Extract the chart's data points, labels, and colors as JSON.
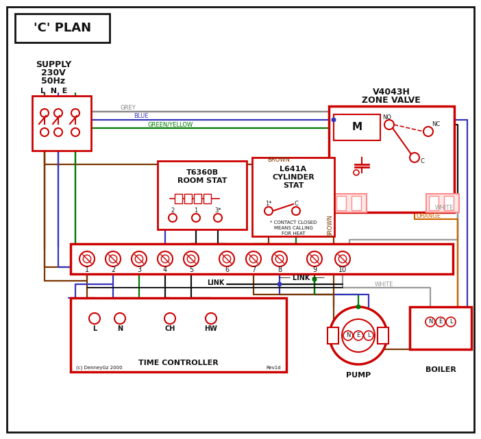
{
  "bg": "#ffffff",
  "red": "#cc0000",
  "blue": "#3333bb",
  "green": "#007700",
  "brown": "#7a3500",
  "grey": "#888888",
  "orange": "#cc6600",
  "black": "#111111",
  "white_wire": "#999999",
  "title": "'C' PLAN",
  "zone_valve_line1": "V4043H",
  "zone_valve_line2": "ZONE VALVE",
  "room_stat_line1": "T6360B",
  "room_stat_line2": "ROOM STAT",
  "cyl_stat_line1": "L641A",
  "cyl_stat_line2": "CYLINDER",
  "cyl_stat_line3": "STAT",
  "supply_line1": "SUPPLY",
  "supply_line2": "230V",
  "supply_line3": "50Hz",
  "supply_lne": "L  N  E",
  "time_ctrl": "TIME CONTROLLER",
  "pump_label": "PUMP",
  "boiler_label": "BOILER",
  "link_label": "LINK",
  "contact_line1": "* CONTACT CLOSED",
  "contact_line2": "MEANS CALLING",
  "contact_line3": "FOR HEAT",
  "copyright": "(c) DenneyGz 2000",
  "revision": "Rev1d",
  "grey_lbl": "GREY",
  "blue_lbl": "BLUE",
  "green_yellow_lbl": "GREEN/YELLOW",
  "brown_lbl": "BROWN",
  "white_lbl": "WHITE",
  "orange_lbl": "ORANGE"
}
